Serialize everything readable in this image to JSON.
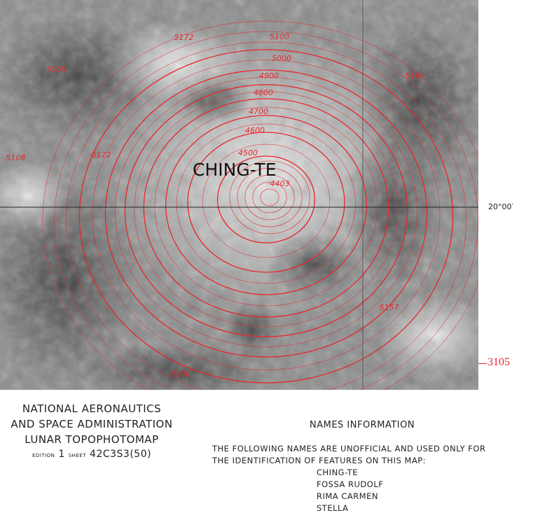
{
  "map": {
    "feature_name": "CHING-TE",
    "latitude_label": "20°00′",
    "grid_label": "3105",
    "contour_color": "#e8262b",
    "contours": [
      {
        "level": "4500"
      },
      {
        "level": "4600"
      },
      {
        "level": "4700"
      },
      {
        "level": "4800"
      },
      {
        "level": "4900"
      },
      {
        "level": "5000"
      },
      {
        "level": "5100"
      }
    ],
    "spot_heights": [
      "4403",
      "5172",
      "5183",
      "5105",
      "5108",
      "5172",
      "5157",
      "5100"
    ]
  },
  "title_block": {
    "line1": "NATIONAL AERONAUTICS",
    "line2": "AND SPACE ADMINISTRATION",
    "line3": "LUNAR TOPOPHOTOMAP",
    "edition_label": "EDITION",
    "edition": "1",
    "sheet_label": "SHEET",
    "sheet": "42C3S3(50)"
  },
  "names_info": {
    "heading": "NAMES INFORMATION",
    "line1": "THE FOLLOWING NAMES ARE UNOFFICIAL AND USED ONLY FOR",
    "line2": "THE IDENTIFICATION OF FEATURES ON THIS MAP:",
    "names": [
      "CHING-TE",
      "FOSSA RUDOLF",
      "RIMA CARMEN",
      "STELLA"
    ]
  }
}
